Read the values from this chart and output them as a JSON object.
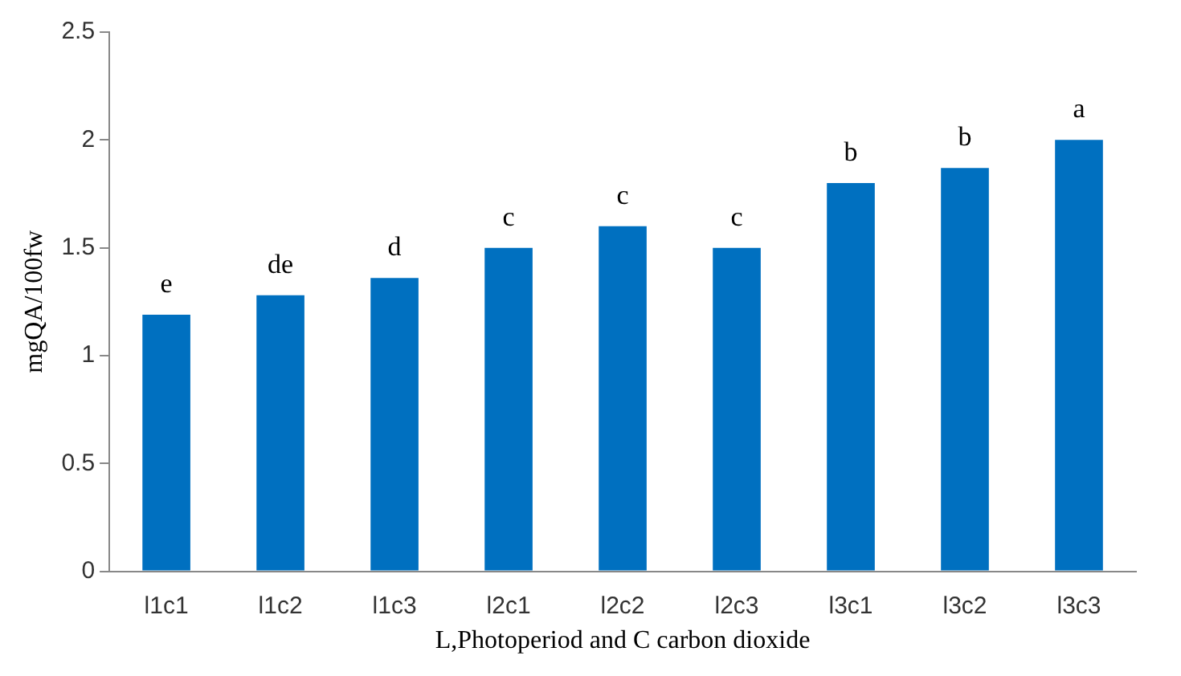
{
  "chart_data": {
    "type": "bar",
    "xlabel": "L,Photoperiod and C carbon dioxide",
    "ylabel": "mgQA/100fw",
    "categories": [
      "l1c1",
      "l1c2",
      "l1c3",
      "l2c1",
      "l2c2",
      "l2c3",
      "l3c1",
      "l3c2",
      "l3c3"
    ],
    "values": [
      1.19,
      1.28,
      1.36,
      1.5,
      1.6,
      1.5,
      1.8,
      1.87,
      2.0
    ],
    "color": "#0070c0",
    "ylim": [
      0,
      2.5
    ],
    "yticks": [
      0,
      0.5,
      1,
      1.5,
      2,
      2.5
    ],
    "grid": false,
    "legend": false,
    "annotations": [
      {
        "text": "e",
        "x": "l1c1",
        "y": 1.19
      },
      {
        "text": "de",
        "x": "l1c2",
        "y": 1.28
      },
      {
        "text": "d",
        "x": "l1c3",
        "y": 1.36
      },
      {
        "text": "c",
        "x": "l2c1",
        "y": 1.5
      },
      {
        "text": "c",
        "x": "l2c2",
        "y": 1.6
      },
      {
        "text": "c",
        "x": "l2c3",
        "y": 1.5
      },
      {
        "text": "b",
        "x": "l3c1",
        "y": 1.8
      },
      {
        "text": "b",
        "x": "l3c2",
        "y": 1.87
      },
      {
        "text": "a",
        "x": "l3c3",
        "y": 2.0
      }
    ]
  }
}
